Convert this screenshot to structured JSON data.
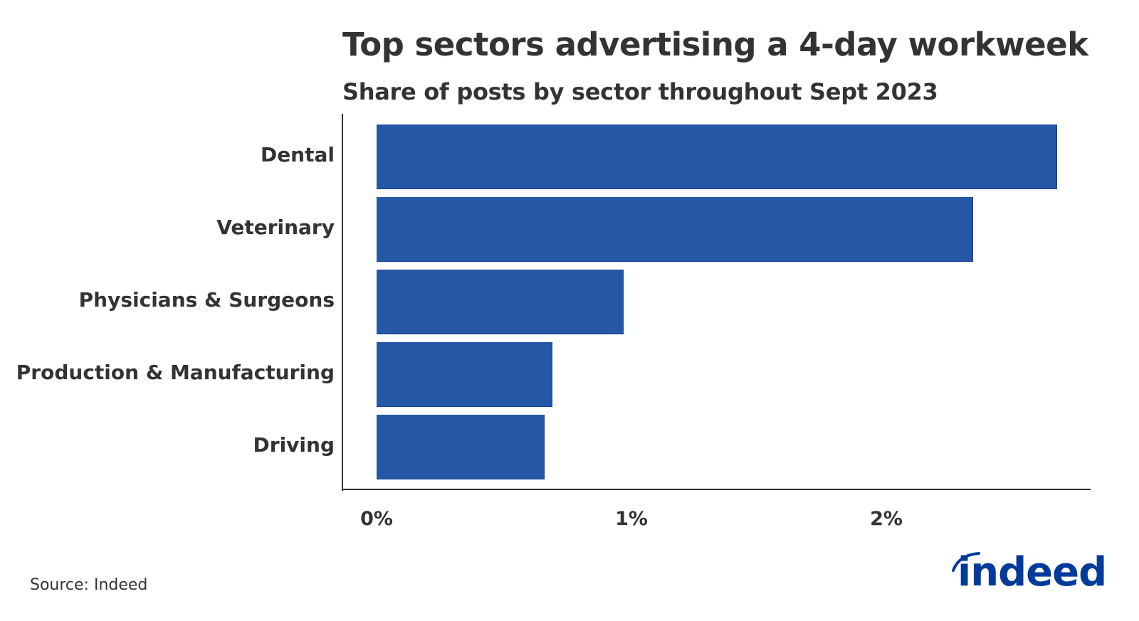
{
  "header": {
    "title": "Top sectors advertising a 4-day workweek",
    "subtitle": "Share of posts by sector throughout Sept 2023"
  },
  "footer": {
    "source": "Source: Indeed",
    "logo_text": "indeed"
  },
  "colors": {
    "bar": "#2457a5",
    "text": "#333333",
    "logo": "#003a9b"
  },
  "axis": {
    "x_ticks": [
      "0%",
      "1%",
      "2%"
    ]
  },
  "chart_data": {
    "type": "bar",
    "orientation": "horizontal",
    "title": "Top sectors advertising a 4-day workweek",
    "subtitle": "Share of posts by sector throughout Sept 2023",
    "categories": [
      "Dental",
      "Veterinary",
      "Physicians & Surgeons",
      "Production & Manufacturing",
      "Driving"
    ],
    "values": [
      2.67,
      2.34,
      0.97,
      0.69,
      0.66
    ],
    "unit": "%",
    "xlabel": "",
    "ylabel": "",
    "xlim": [
      0,
      2.8
    ],
    "x_ticks": [
      "0%",
      "1%",
      "2%"
    ],
    "grid": false,
    "legend": "none",
    "source": "Source: Indeed"
  }
}
